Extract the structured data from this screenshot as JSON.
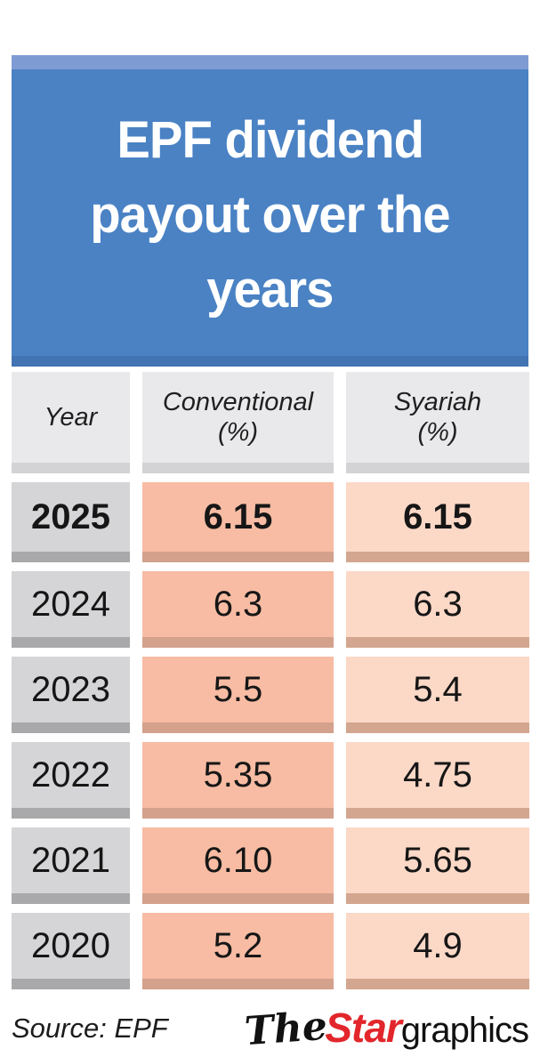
{
  "header": {
    "title": "EPF dividend payout over the years",
    "title_lines": [
      "EPF dividend",
      "payout over the",
      "years"
    ]
  },
  "table": {
    "columns": [
      {
        "label": "Year",
        "unit": ""
      },
      {
        "label": "Conventional",
        "unit": "(%)"
      },
      {
        "label": "Syariah",
        "unit": "(%)"
      }
    ]
  },
  "chart_data": {
    "type": "table",
    "title": "EPF dividend payout over the years",
    "columns": [
      "Year",
      "Conventional (%)",
      "Syariah (%)"
    ],
    "rows": [
      {
        "year": "2025",
        "conventional": "6.15",
        "syariah": "6.15"
      },
      {
        "year": "2024",
        "conventional": "6.3",
        "syariah": "6.3"
      },
      {
        "year": "2023",
        "conventional": "5.5",
        "syariah": "5.4"
      },
      {
        "year": "2022",
        "conventional": "5.35",
        "syariah": "4.75"
      },
      {
        "year": "2021",
        "conventional": "6.10",
        "syariah": "5.65"
      },
      {
        "year": "2020",
        "conventional": "5.2",
        "syariah": "4.9"
      }
    ],
    "highlight_row": "2025",
    "source": "EPF"
  },
  "footer": {
    "source_label": "Source: EPF",
    "logo": {
      "the": "The",
      "star": "Star",
      "graphics": "graphics"
    }
  },
  "colors": {
    "banner_blue": "#4a82c4",
    "banner_blue_light": "#7e9bd3",
    "banner_blue_dark": "#4273b3",
    "header_cell_gray": "#e9e9eb",
    "year_cell_gray": "#d5d5d7",
    "conventional_cell": "#f7bca3",
    "syariah_cell": "#fcd8c7",
    "star_red": "#e2262b"
  }
}
